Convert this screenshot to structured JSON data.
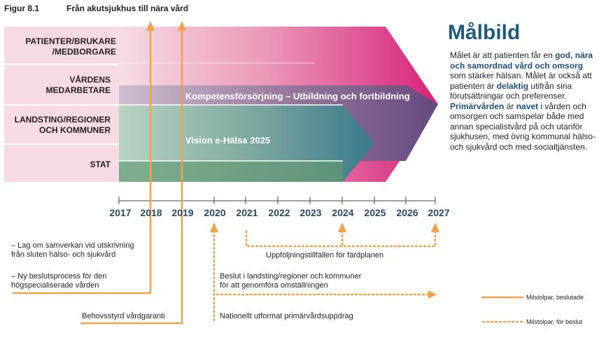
{
  "figure": {
    "number": "Figur 8.1",
    "title": "Från akutsjukhus till nära vård"
  },
  "rows": [
    {
      "label_line1": "PATIENTER/BRUKARE",
      "label_line2": "/MEDBORGARE"
    },
    {
      "label_line1": "VÅRDENS",
      "label_line2": "MEDARBETARE"
    },
    {
      "label_line1": "LANDSTING/REGIONER",
      "label_line2": "OCH KOMMUNER"
    },
    {
      "label_line1": "STAT",
      "label_line2": ""
    }
  ],
  "arrows": {
    "competence": "Kompetensförsörjning – Utbildning och fortbildning",
    "vision": "Vision e-Hälsa 2025"
  },
  "years": [
    "2017",
    "2018",
    "2019",
    "2020",
    "2021",
    "2022",
    "2023",
    "2024",
    "2025",
    "2026",
    "2027"
  ],
  "milestones": {
    "m2018_line1": "– Lag om samverkan vid utskrivning",
    "m2018_line2": "från sluten hälso- och sjukvård",
    "m2018b_line1": "– Ny beslutsprocess för den",
    "m2018b_line2": "högspecialiserade vården",
    "m2019": "Behovsstyrd vårdgaranti",
    "followup": "Uppföljningstillfällen för färdplanen",
    "decision_line1": "Beslut i landsting/regioner och kommuner",
    "decision_line2": "för att genomföra omställningen",
    "primary": "Nationellt utformat primärvårdsuppdrag"
  },
  "goal": {
    "title": "Målbild",
    "t1": "Målet är att patienten får en ",
    "b1": "god, nära och samordnad vård och omsorg",
    "t2": " som stärker hälsan. Målet är också att patienten är ",
    "b2": "delaktig",
    "t3": " utifrån sina förutsättningar och preferenser. ",
    "b3": "Primärvården",
    "t4": " är ",
    "b4": "navet",
    "t5": " i vården och omsorgen och samspelar både med annan specialistvård på och utanför sjukhusen, med övrig kommunal hälso- och sjukvård och med socialtjänsten."
  },
  "legend": {
    "decided": "Milstolpar, beslutade",
    "pending": "Milstolpar, för beslut"
  },
  "colors": {
    "magenta": "#d6237a",
    "purple": "#6d4f86",
    "teal": "#3f7f8e",
    "green": "#6a9d80",
    "orange": "#f0a24c",
    "navy": "#2a4a66"
  }
}
